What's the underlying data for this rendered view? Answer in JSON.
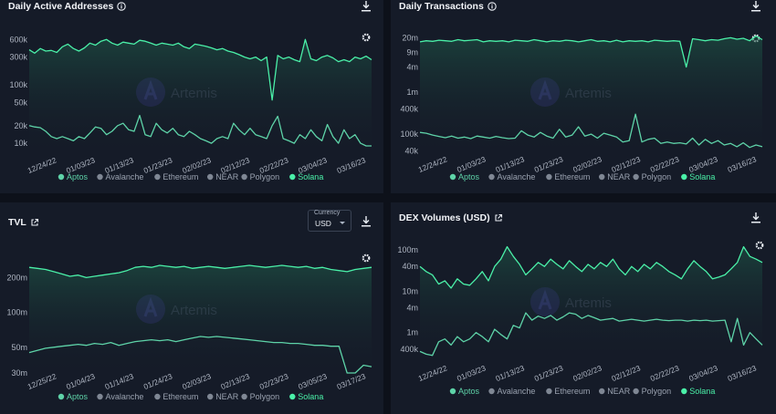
{
  "theme": {
    "bg": "#0d111a",
    "panel": "#151b28",
    "aptos": "#5ed3a8",
    "solana": "#4af0a8",
    "muted": "#7f8794",
    "text": "#e9edf3",
    "watermark_badge": "#2f2a6b"
  },
  "watermark": {
    "text": "Artemis"
  },
  "legend": [
    {
      "label": "Aptos",
      "color": "#5ed3a8"
    },
    {
      "label": "Avalanche",
      "color": "#7f8794"
    },
    {
      "label": "Ethereum",
      "color": "#7f8794"
    },
    {
      "label": "NEAR",
      "color": "#7f8794"
    },
    {
      "label": "Polygon",
      "color": "#7f8794"
    },
    {
      "label": "Solana",
      "color": "#4af0a8"
    }
  ],
  "panels": [
    {
      "title": "Daily Active Addresses",
      "title_icon": "info-icon",
      "has_download": true,
      "has_settings": true
    },
    {
      "title": "Daily Transactions",
      "title_icon": "info-icon",
      "has_download": true,
      "has_settings": true
    },
    {
      "title": "TVL",
      "title_icon": "external-link-icon",
      "has_download": true,
      "has_settings": true,
      "currency": {
        "label": "Currency",
        "value": "USD"
      }
    },
    {
      "title": "DEX Volumes (USD)",
      "title_icon": "external-link-icon",
      "has_download": true,
      "has_settings": true
    }
  ],
  "chart_data": [
    {
      "type": "line",
      "title": "Daily Active Addresses",
      "y_scale": "log",
      "ylim": [
        7000,
        700000
      ],
      "y_ticks": [
        "600k",
        "300k",
        "100k",
        "50k",
        "20k",
        "10k"
      ],
      "y_tick_values": [
        600000,
        300000,
        100000,
        50000,
        20000,
        10000
      ],
      "x_ticks": [
        "12/24/22",
        "01/03/23",
        "01/13/23",
        "01/23/23",
        "02/02/23",
        "02/12/23",
        "02/22/23",
        "03/04/23",
        "03/16/23"
      ],
      "series": [
        {
          "name": "Solana",
          "values": [
            400000,
            350000,
            420000,
            380000,
            390000,
            360000,
            450000,
            500000,
            420000,
            380000,
            430000,
            520000,
            480000,
            560000,
            600000,
            520000,
            480000,
            540000,
            520000,
            500000,
            580000,
            560000,
            520000,
            480000,
            520000,
            500000,
            480000,
            520000,
            450000,
            420000,
            500000,
            480000,
            460000,
            430000,
            400000,
            420000,
            380000,
            360000,
            330000,
            300000,
            280000,
            300000,
            260000,
            300000,
            55000,
            320000,
            280000,
            300000,
            270000,
            250000,
            600000,
            280000,
            260000,
            300000,
            320000,
            290000,
            250000,
            270000,
            250000,
            300000,
            280000,
            310000,
            270000
          ]
        },
        {
          "name": "Aptos",
          "values": [
            20000,
            19000,
            18500,
            16000,
            13000,
            12000,
            13000,
            12000,
            11000,
            13000,
            12000,
            15000,
            19000,
            18000,
            14000,
            16000,
            20000,
            22000,
            17000,
            16000,
            30000,
            14000,
            13000,
            22000,
            17000,
            15000,
            18000,
            14000,
            13000,
            16000,
            14000,
            12000,
            11000,
            10000,
            12000,
            13000,
            12000,
            22000,
            17000,
            14000,
            18000,
            14000,
            13000,
            12000,
            20000,
            29000,
            12000,
            11000,
            10000,
            14000,
            12000,
            17000,
            13000,
            11000,
            21000,
            13000,
            10000,
            17000,
            12000,
            14000,
            10000,
            9000,
            9000
          ]
        }
      ]
    },
    {
      "type": "line",
      "title": "Daily Transactions",
      "y_scale": "log",
      "ylim": [
        35000,
        25000000
      ],
      "y_ticks": [
        "20m",
        "9m",
        "4m",
        "1m",
        "400k",
        "100k",
        "40k"
      ],
      "y_tick_values": [
        20000000,
        9000000,
        4000000,
        1000000,
        400000,
        100000,
        40000
      ],
      "x_ticks": [
        "12/24/22",
        "01/03/23",
        "01/13/23",
        "01/23/23",
        "02/02/23",
        "02/12/23",
        "02/22/23",
        "03/04/23",
        "03/16/23"
      ],
      "series": [
        {
          "name": "Solana",
          "values": [
            16000000,
            17000000,
            16500000,
            17500000,
            17000000,
            16500000,
            18000000,
            17000000,
            17500000,
            18000000,
            16000000,
            17000000,
            16500000,
            17000000,
            16000000,
            17500000,
            17000000,
            16500000,
            18000000,
            17000000,
            16000000,
            17000000,
            16500000,
            17500000,
            17000000,
            16000000,
            17000000,
            18000000,
            16500000,
            17000000,
            16000000,
            17500000,
            16000000,
            17000000,
            16500000,
            17000000,
            16000000,
            17500000,
            17000000,
            16500000,
            17000000,
            16500000,
            4000000,
            19000000,
            18000000,
            17000000,
            18000000,
            17500000,
            19000000,
            20000000,
            18500000,
            19500000,
            17000000,
            22000000,
            18000000
          ]
        },
        {
          "name": "Aptos",
          "values": [
            110000,
            105000,
            95000,
            88000,
            82000,
            90000,
            80000,
            85000,
            78000,
            90000,
            85000,
            80000,
            88000,
            82000,
            78000,
            80000,
            120000,
            95000,
            85000,
            110000,
            90000,
            80000,
            130000,
            85000,
            95000,
            150000,
            90000,
            100000,
            80000,
            105000,
            95000,
            85000,
            65000,
            70000,
            300000,
            65000,
            75000,
            80000,
            60000,
            65000,
            60000,
            62000,
            58000,
            80000,
            55000,
            75000,
            60000,
            70000,
            55000,
            60000,
            50000,
            62000,
            48000,
            55000,
            50000
          ]
        }
      ]
    },
    {
      "type": "line",
      "title": "TVL",
      "y_scale": "log",
      "ylim": [
        30000000,
        300000000
      ],
      "y_ticks": [
        "200m",
        "100m",
        "50m",
        "30m"
      ],
      "y_tick_values": [
        200000000,
        100000000,
        50000000,
        30000000
      ],
      "x_ticks": [
        "12/25/22",
        "01/04/23",
        "01/14/23",
        "01/24/23",
        "02/03/23",
        "02/13/23",
        "02/23/23",
        "03/05/23",
        "03/17/23"
      ],
      "series": [
        {
          "name": "Solana",
          "values": [
            245000000,
            240000000,
            235000000,
            225000000,
            215000000,
            205000000,
            210000000,
            200000000,
            205000000,
            210000000,
            215000000,
            220000000,
            230000000,
            245000000,
            250000000,
            245000000,
            255000000,
            250000000,
            245000000,
            250000000,
            240000000,
            245000000,
            250000000,
            245000000,
            240000000,
            245000000,
            250000000,
            255000000,
            250000000,
            245000000,
            250000000,
            255000000,
            250000000,
            245000000,
            250000000,
            240000000,
            245000000,
            235000000,
            230000000,
            225000000,
            235000000,
            240000000,
            245000000
          ]
        },
        {
          "name": "Aptos",
          "values": [
            45000000,
            47000000,
            49000000,
            50000000,
            51000000,
            52000000,
            53000000,
            52000000,
            54000000,
            53000000,
            55000000,
            52000000,
            54000000,
            56000000,
            57000000,
            58000000,
            57000000,
            58000000,
            56000000,
            58000000,
            60000000,
            62000000,
            61000000,
            62000000,
            61000000,
            60000000,
            59000000,
            58000000,
            57000000,
            56000000,
            55000000,
            55000000,
            54000000,
            54000000,
            53000000,
            52000000,
            52000000,
            51000000,
            51000000,
            30000000,
            30000000,
            35000000,
            34000000
          ]
        }
      ]
    },
    {
      "type": "line",
      "title": "DEX Volumes (USD)",
      "y_scale": "log",
      "ylim": [
        250000,
        130000000
      ],
      "y_ticks": [
        "100m",
        "40m",
        "10m",
        "4m",
        "1m",
        "400k"
      ],
      "y_tick_values": [
        100000000,
        40000000,
        10000000,
        4000000,
        1000000,
        400000
      ],
      "x_ticks": [
        "12/24/22",
        "01/03/23",
        "01/13/23",
        "01/23/23",
        "02/02/23",
        "02/12/23",
        "02/22/23",
        "03/04/23",
        "03/16/23"
      ],
      "series": [
        {
          "name": "Solana",
          "values": [
            40000000,
            30000000,
            25000000,
            15000000,
            18000000,
            12000000,
            20000000,
            15000000,
            14000000,
            20000000,
            30000000,
            18000000,
            40000000,
            60000000,
            120000000,
            70000000,
            45000000,
            25000000,
            35000000,
            50000000,
            40000000,
            60000000,
            45000000,
            35000000,
            55000000,
            40000000,
            30000000,
            45000000,
            35000000,
            50000000,
            40000000,
            60000000,
            35000000,
            25000000,
            40000000,
            30000000,
            45000000,
            35000000,
            50000000,
            40000000,
            30000000,
            25000000,
            20000000,
            35000000,
            55000000,
            40000000,
            30000000,
            20000000,
            22000000,
            25000000,
            35000000,
            50000000,
            120000000,
            70000000,
            60000000,
            50000000
          ]
        },
        {
          "name": "Aptos",
          "values": [
            350000,
            300000,
            280000,
            600000,
            700000,
            500000,
            800000,
            600000,
            700000,
            1000000,
            800000,
            600000,
            1200000,
            900000,
            700000,
            1500000,
            1300000,
            3000000,
            2000000,
            2500000,
            2200000,
            2600000,
            2000000,
            2400000,
            3000000,
            2800000,
            2200000,
            2600000,
            2300000,
            2000000,
            2100000,
            2200000,
            1900000,
            2000000,
            2100000,
            2000000,
            1900000,
            2000000,
            2100000,
            2000000,
            1950000,
            2000000,
            2000000,
            1900000,
            2000000,
            1950000,
            2000000,
            1900000,
            1950000,
            2000000,
            600000,
            2200000,
            500000,
            1000000,
            700000,
            500000
          ]
        }
      ]
    }
  ]
}
